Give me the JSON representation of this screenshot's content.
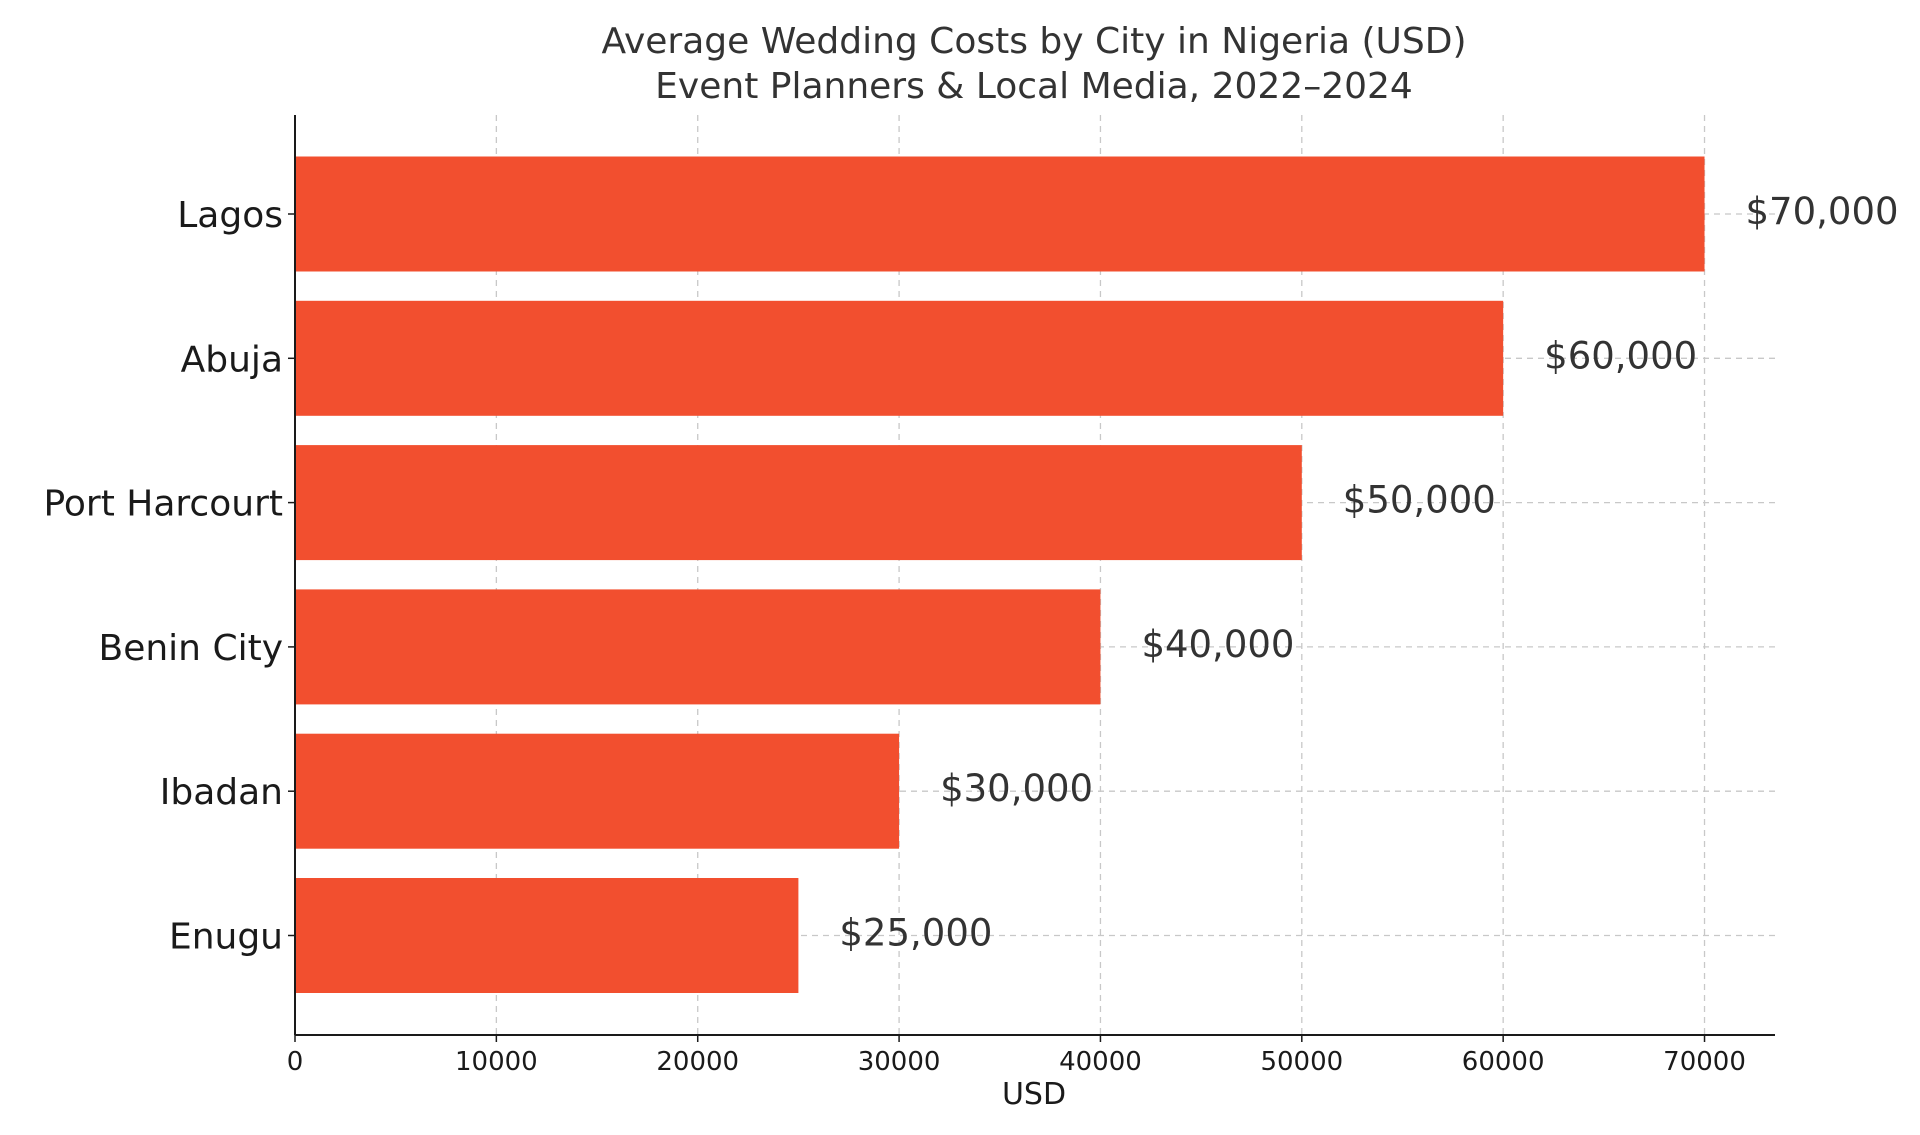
{
  "chart_data": {
    "type": "bar",
    "orientation": "horizontal",
    "title": "Average Wedding Costs by City in Nigeria (USD)",
    "subtitle": "Event Planners & Local Media, 2022–2024",
    "categories": [
      "Lagos",
      "Abuja",
      "Port Harcourt",
      "Benin City",
      "Ibadan",
      "Enugu"
    ],
    "values": [
      70000,
      60000,
      50000,
      40000,
      30000,
      25000
    ],
    "data_labels": [
      "$70,000",
      "$60,000",
      "$50,000",
      "$40,000",
      "$30,000",
      "$25,000"
    ],
    "xlabel": "USD",
    "ylabel": "",
    "xlim": [
      0,
      73500
    ],
    "xticks": [
      0,
      10000,
      20000,
      30000,
      40000,
      50000,
      60000,
      70000
    ],
    "xtick_labels": [
      "0",
      "10000",
      "20000",
      "30000",
      "40000",
      "50000",
      "60000",
      "70000"
    ],
    "grid": true,
    "bar_color": "#f24f2f"
  }
}
